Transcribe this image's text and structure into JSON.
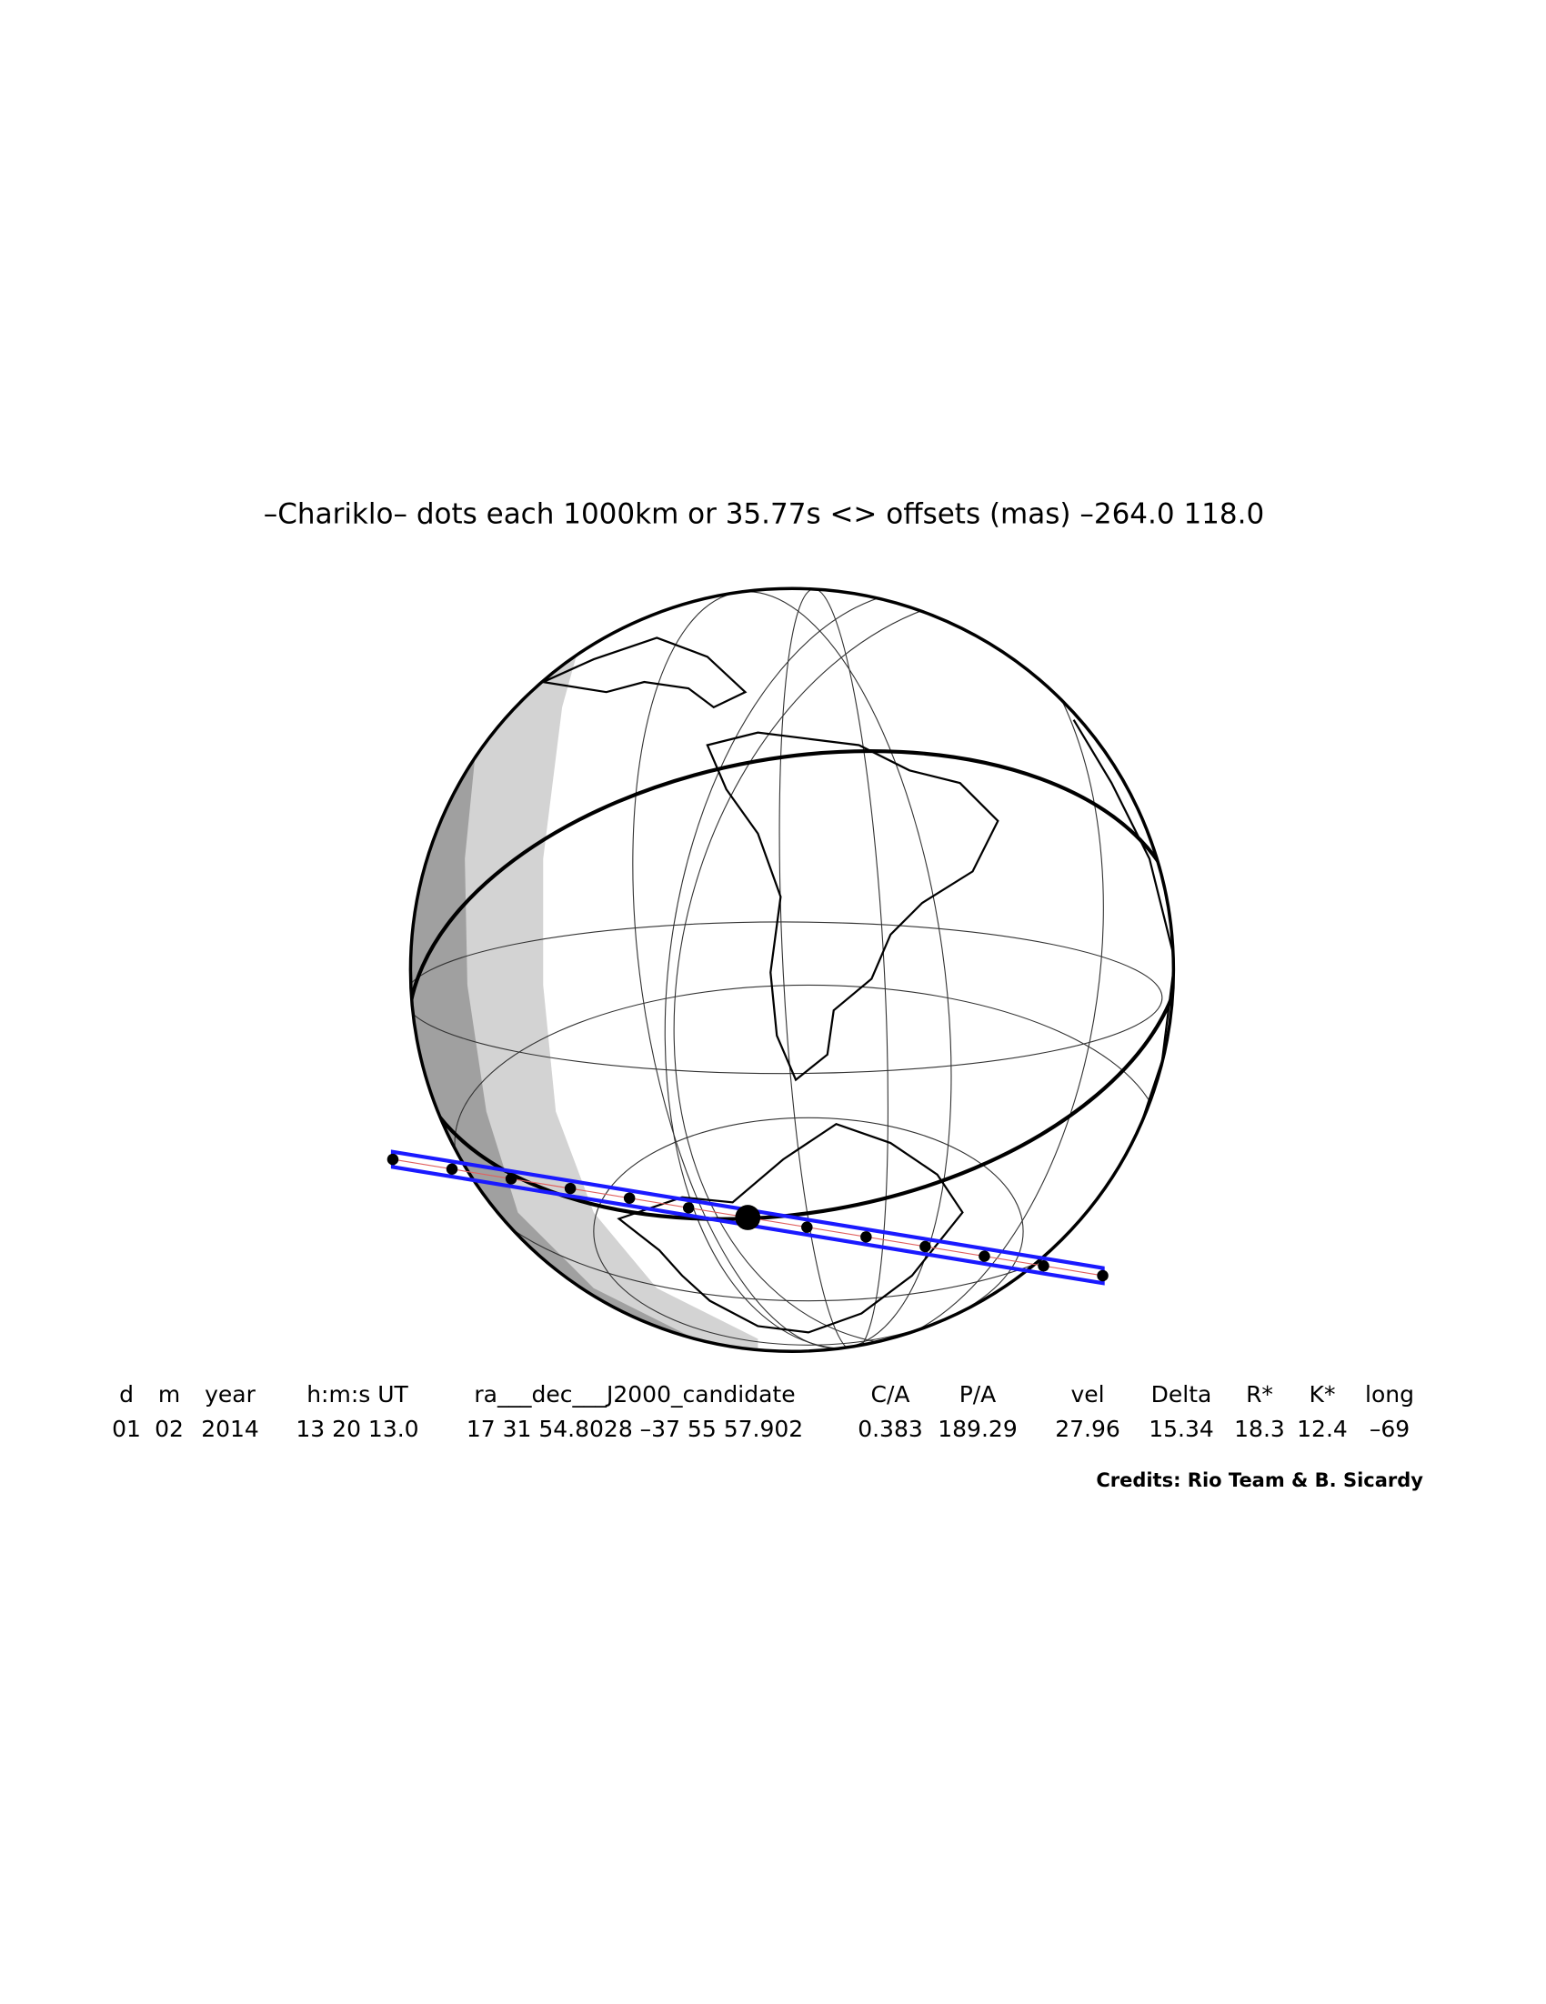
{
  "title": "–Chariklo– dots each 1000km or 35.77s <> offsets (mas) –264.0  118.0",
  "table": {
    "headers": [
      "d",
      "m",
      "year",
      "h:m:s UT",
      "ra___dec___J2000_candidate",
      "C/A",
      "P/A",
      "vel",
      "Delta",
      "R*",
      "K*",
      "long"
    ],
    "values": [
      "01",
      "02",
      "2014",
      "13 20 13.0",
      "17 31 54.8028 –37 55 57.902",
      "0.383",
      "189.29",
      "27.96",
      "15.34",
      "18.3",
      "12.4",
      "–69"
    ]
  },
  "credits": "Credits: Rio Team & B. Sicardy"
}
